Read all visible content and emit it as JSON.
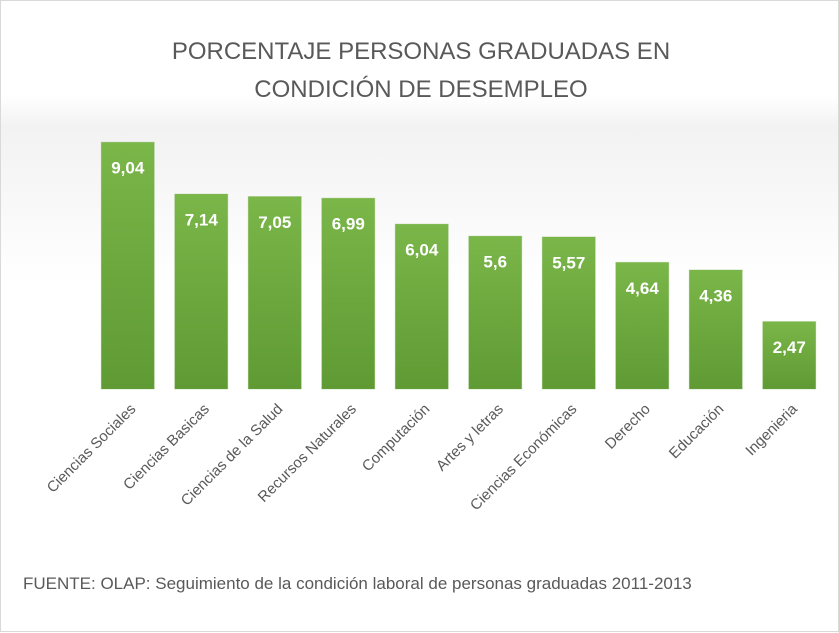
{
  "chart_data": {
    "type": "bar",
    "title": "PORCENTAJE PERSONAS GRADUADAS EN CONDICIÓN DE DESEMPLEO",
    "categories": [
      "Ciencias Sociales",
      "Ciencias Basicas",
      "Ciencias de la Salud",
      "Recursos Naturales",
      "Computación",
      "Artes y letras",
      "Ciencias Económicas",
      "Derecho",
      "Educación",
      "Ingenieria"
    ],
    "values": [
      9.04,
      7.14,
      7.05,
      6.99,
      6.04,
      5.6,
      5.57,
      4.64,
      4.36,
      2.47
    ],
    "value_labels": [
      "9,04",
      "7,14",
      "7,05",
      "6,99",
      "6,04",
      "5,6",
      "5,57",
      "4,64",
      "4,36",
      "2,47"
    ],
    "color": "#70ad47",
    "source": "FUENTE: OLAP: Seguimiento de la condición laboral de personas graduadas 2011-2013"
  }
}
